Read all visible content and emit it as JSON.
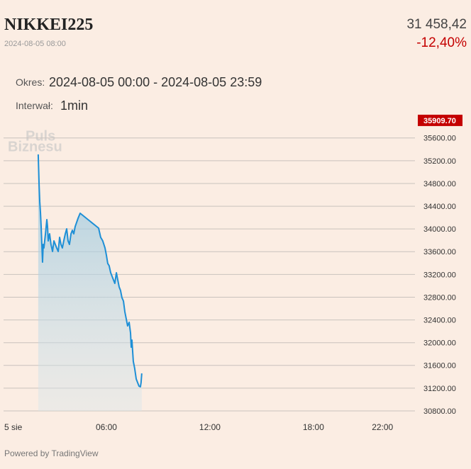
{
  "header": {
    "title": "NIKKEI225",
    "datetime": "2024-08-05 08:00",
    "price": "31 458,42",
    "change": "-12,40%"
  },
  "period": {
    "label": "Okres:",
    "value": "2024-08-05 00:00 - 2024-08-05 23:59"
  },
  "interval": {
    "label": "Interwał:",
    "value": "1min"
  },
  "watermark": [
    "Puls",
    "Biznesu"
  ],
  "footer": "Powered by TradingView",
  "chart_data": {
    "type": "line",
    "x": [
      2.05,
      2.1,
      2.14,
      2.18,
      2.22,
      2.3,
      2.34,
      2.38,
      2.47,
      2.55,
      2.59,
      2.63,
      2.71,
      2.79,
      2.88,
      2.96,
      3.04,
      3.12,
      3.21,
      3.29,
      3.37,
      3.45,
      3.53,
      3.62,
      3.7,
      3.78,
      3.86,
      3.95,
      4.03,
      4.11,
      4.19,
      4.36,
      4.48,
      5.55,
      5.67,
      5.79,
      5.92,
      6.0,
      6.08,
      6.16,
      6.25,
      6.33,
      6.41,
      6.49,
      6.58,
      6.66,
      6.74,
      6.82,
      6.9,
      6.99,
      7.07,
      7.15,
      7.23,
      7.32,
      7.4,
      7.44,
      7.48,
      7.56,
      7.64,
      7.73,
      7.81,
      7.89,
      7.97,
      8.01,
      8.05
    ],
    "series": [
      {
        "color": "#1e8fd6",
        "values": [
          35311,
          34787,
          34476,
          34289,
          34040,
          33417,
          33728,
          33666,
          33915,
          34164,
          34040,
          33790,
          33915,
          33728,
          33604,
          33790,
          33728,
          33666,
          33604,
          33853,
          33728,
          33666,
          33790,
          33915,
          34002,
          33790,
          33728,
          33915,
          33977,
          33915,
          34040,
          34189,
          34276,
          34015,
          33853,
          33790,
          33666,
          33541,
          33392,
          33354,
          33230,
          33167,
          33105,
          33043,
          33230,
          33105,
          32981,
          32918,
          32794,
          32731,
          32544,
          32420,
          32295,
          32358,
          32171,
          31921,
          32046,
          31672,
          31548,
          31361,
          31298,
          31236,
          31224,
          31298,
          31460
        ]
      }
    ],
    "xlim": [
      0,
      23.8
    ],
    "xticks": [
      {
        "value": 0,
        "label": "5 sie"
      },
      {
        "value": 6,
        "label": "06:00"
      },
      {
        "value": 12,
        "label": "12:00"
      },
      {
        "value": 18,
        "label": "18:00"
      },
      {
        "value": 22,
        "label": "22:00"
      }
    ],
    "ylim": [
      30800,
      35784
    ],
    "yticks": [
      {
        "value": 30800,
        "label": "30800.00"
      },
      {
        "value": 31200,
        "label": "31200.00"
      },
      {
        "value": 31600,
        "label": "31600.00"
      },
      {
        "value": 32000,
        "label": "32000.00"
      },
      {
        "value": 32400,
        "label": "32400.00"
      },
      {
        "value": 32800,
        "label": "32800.00"
      },
      {
        "value": 33200,
        "label": "33200.00"
      },
      {
        "value": 33600,
        "label": "33600.00"
      },
      {
        "value": 34000,
        "label": "34000.00"
      },
      {
        "value": 34400,
        "label": "34400.00"
      },
      {
        "value": 34800,
        "label": "34800.00"
      },
      {
        "value": 35200,
        "label": "35200.00"
      },
      {
        "value": 35600,
        "label": "35600.00"
      }
    ],
    "grid": true,
    "price_marker": {
      "value": 35909.7,
      "label": "35909.70",
      "color": "#c40000"
    }
  }
}
